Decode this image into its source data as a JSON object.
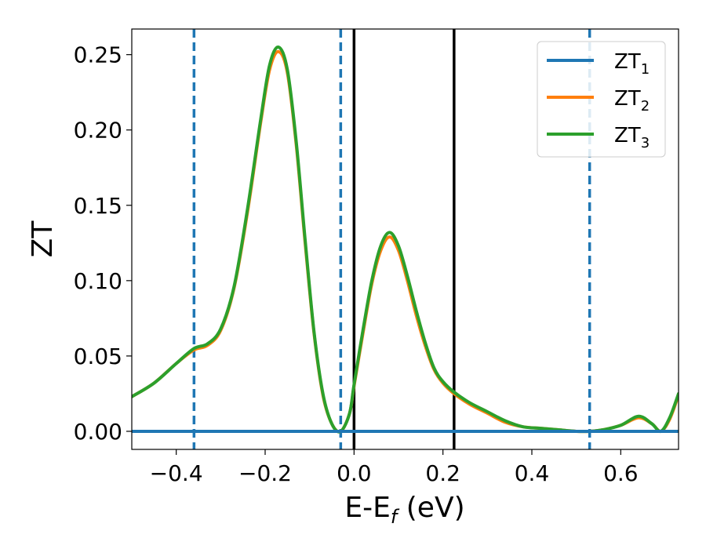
{
  "chart_data": {
    "type": "line",
    "xlabel": "E-E",
    "xlabel_sub": "f",
    "xlabel_unit": " (eV)",
    "ylabel": "ZT",
    "xlim": [
      -0.5,
      0.73
    ],
    "ylim": [
      -0.012,
      0.267
    ],
    "xticks": [
      -0.4,
      -0.2,
      0.0,
      0.2,
      0.4,
      0.6
    ],
    "xtick_labels": [
      "−0.4",
      "−0.2",
      "0.0",
      "0.2",
      "0.4",
      "0.6"
    ],
    "yticks": [
      0.0,
      0.05,
      0.1,
      0.15,
      0.2,
      0.25
    ],
    "ytick_labels": [
      "0.00",
      "0.05",
      "0.10",
      "0.15",
      "0.20",
      "0.25"
    ],
    "legend_position": "top-right",
    "grid": false,
    "vlines_dashed": [
      -0.36,
      -0.03,
      0.53
    ],
    "vlines_solid": [
      0.0,
      0.225
    ],
    "vline_dashed_color": "#1f77b4",
    "vline_solid_color": "#000000",
    "series": [
      {
        "name": "ZT",
        "sub": "1",
        "color": "#1f77b4",
        "x": [
          -0.5,
          0.73
        ],
        "y": [
          0.0,
          0.0
        ]
      },
      {
        "name": "ZT",
        "sub": "2",
        "color": "#ff7f0e",
        "x": [
          -0.5,
          -0.45,
          -0.4,
          -0.36,
          -0.33,
          -0.3,
          -0.27,
          -0.24,
          -0.21,
          -0.19,
          -0.17,
          -0.15,
          -0.13,
          -0.11,
          -0.09,
          -0.07,
          -0.05,
          -0.03,
          -0.01,
          0.0,
          0.02,
          0.04,
          0.06,
          0.08,
          0.1,
          0.12,
          0.14,
          0.16,
          0.18,
          0.2,
          0.225,
          0.26,
          0.3,
          0.34,
          0.38,
          0.42,
          0.46,
          0.5,
          0.53,
          0.56,
          0.6,
          0.64,
          0.67,
          0.69,
          0.71,
          0.73
        ],
        "y": [
          0.023,
          0.032,
          0.045,
          0.054,
          0.057,
          0.067,
          0.095,
          0.145,
          0.205,
          0.24,
          0.252,
          0.238,
          0.19,
          0.125,
          0.065,
          0.024,
          0.005,
          0.0,
          0.012,
          0.03,
          0.065,
          0.098,
          0.12,
          0.129,
          0.12,
          0.1,
          0.077,
          0.057,
          0.041,
          0.032,
          0.025,
          0.018,
          0.012,
          0.006,
          0.003,
          0.002,
          0.001,
          0.0,
          0.0,
          0.001,
          0.004,
          0.009,
          0.005,
          0.0,
          0.008,
          0.024
        ]
      },
      {
        "name": "ZT",
        "sub": "3",
        "color": "#2ca02c",
        "x": [
          -0.5,
          -0.45,
          -0.4,
          -0.36,
          -0.33,
          -0.3,
          -0.27,
          -0.24,
          -0.21,
          -0.19,
          -0.17,
          -0.15,
          -0.13,
          -0.11,
          -0.09,
          -0.07,
          -0.05,
          -0.03,
          -0.01,
          0.0,
          0.02,
          0.04,
          0.06,
          0.08,
          0.1,
          0.12,
          0.14,
          0.16,
          0.18,
          0.2,
          0.225,
          0.26,
          0.3,
          0.34,
          0.38,
          0.42,
          0.46,
          0.5,
          0.53,
          0.56,
          0.6,
          0.64,
          0.67,
          0.69,
          0.71,
          0.73
        ],
        "y": [
          0.023,
          0.032,
          0.045,
          0.055,
          0.058,
          0.068,
          0.096,
          0.147,
          0.207,
          0.243,
          0.255,
          0.24,
          0.192,
          0.127,
          0.066,
          0.025,
          0.005,
          0.0,
          0.012,
          0.031,
          0.067,
          0.1,
          0.123,
          0.132,
          0.123,
          0.103,
          0.08,
          0.059,
          0.042,
          0.033,
          0.026,
          0.019,
          0.013,
          0.007,
          0.003,
          0.002,
          0.001,
          0.0,
          0.0,
          0.001,
          0.004,
          0.01,
          0.005,
          0.0,
          0.009,
          0.025
        ]
      }
    ]
  }
}
